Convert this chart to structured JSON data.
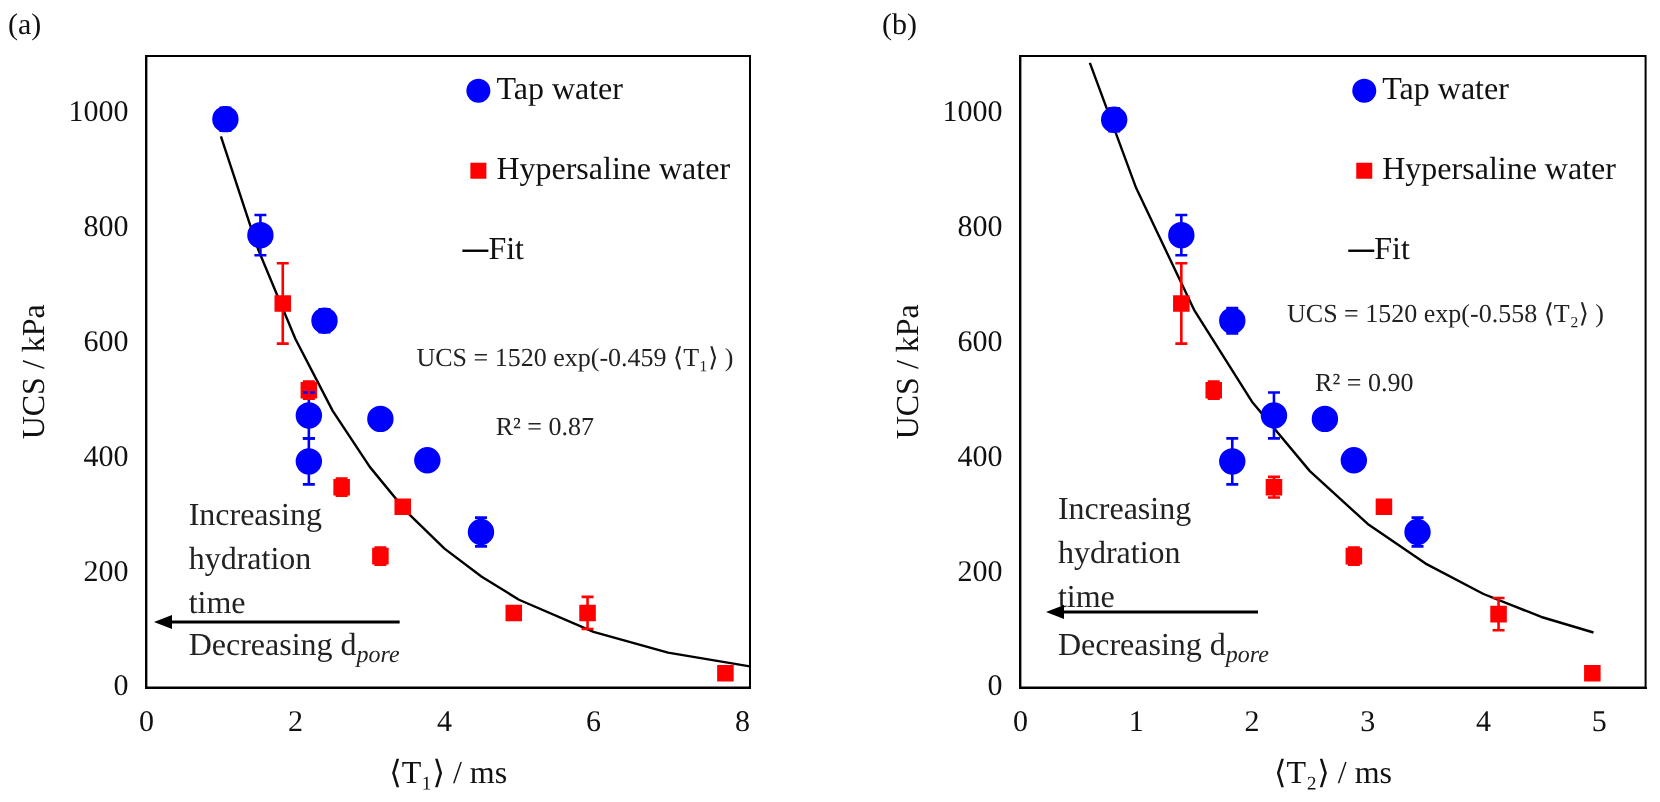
{
  "chart_data": [
    {
      "type": "scatter",
      "title": "(a)",
      "xlabel": "⟨T₁⟩ / ms",
      "ylabel": "UCS / kPa",
      "xlim": [
        0,
        8.1
      ],
      "xticks": [
        0,
        2,
        4,
        6,
        8
      ],
      "ylim": [
        0,
        1100
      ],
      "yticks": [
        0,
        200,
        400,
        600,
        800,
        1000
      ],
      "legend": "top right",
      "annotations": [
        "UCS = 1520 exp(-0.459 ⟨T₁⟩ )",
        "R² = 0.87",
        "Increasing hydration time",
        "Decreasing d$_{pore}$"
      ],
      "series": [
        {
          "name": "Tap water",
          "color": "#0000ff",
          "marker": "circle",
          "x": [
            1.06,
            1.53,
            2.39,
            2.18,
            2.18,
            3.14,
            3.77,
            4.49
          ],
          "values": [
            990,
            788,
            639,
            474,
            394,
            468,
            396,
            271
          ],
          "errors": [
            20,
            35,
            20,
            40,
            40,
            null,
            null,
            25
          ]
        },
        {
          "name": "Hypersaline water",
          "color": "#ff0000",
          "marker": "square",
          "x": [
            1.83,
            2.18,
            2.62,
            3.14,
            3.44,
            4.93,
            5.92,
            7.77
          ],
          "values": [
            669,
            518,
            349,
            229,
            315,
            130,
            130,
            25
          ],
          "errors": [
            70,
            15,
            15,
            15,
            null,
            null,
            28,
            null
          ]
        },
        {
          "name": "Fit",
          "type": "line",
          "color": "#000000",
          "marker": "none",
          "x": [
            1.0,
            1.5,
            2,
            2.5,
            3,
            3.5,
            4,
            4.5,
            5,
            6,
            7,
            8.1
          ],
          "values": [
            960,
            763,
            607,
            482,
            384,
            305,
            242,
            193,
            153,
            97,
            61,
            37
          ]
        }
      ]
    },
    {
      "type": "scatter",
      "title": "(b)",
      "xlabel": "⟨T₂⟩ / ms",
      "ylabel": "UCS / kPa",
      "xlim": [
        0,
        5.4
      ],
      "xticks": [
        0,
        1,
        2,
        3,
        4,
        5
      ],
      "ylim": [
        0,
        1100
      ],
      "yticks": [
        0,
        200,
        400,
        600,
        800,
        1000
      ],
      "legend": "top right",
      "annotations": [
        "UCS = 1520 exp(-0.558 ⟨T₂⟩ )",
        "R² = 0.90",
        "Increasing hydration time",
        "Decreasing d$_{pore}$"
      ],
      "series": [
        {
          "name": "Tap water",
          "color": "#0000ff",
          "marker": "circle",
          "x": [
            0.81,
            1.39,
            1.83,
            1.83,
            2.19,
            2.63,
            2.88,
            3.43
          ],
          "values": [
            989,
            788,
            639,
            394,
            474,
            468,
            396,
            271
          ],
          "errors": [
            20,
            35,
            22,
            40,
            40,
            null,
            null,
            25
          ]
        },
        {
          "name": "Hypersaline water",
          "color": "#ff0000",
          "marker": "square",
          "x": [
            1.39,
            1.67,
            2.19,
            2.88,
            3.14,
            4.13,
            4.94
          ],
          "values": [
            669,
            518,
            349,
            229,
            315,
            128,
            25
          ],
          "errors": [
            70,
            15,
            18,
            15,
            null,
            28,
            null
          ]
        },
        {
          "name": "Fit",
          "type": "line",
          "color": "#000000",
          "marker": "none",
          "x": [
            0.6,
            1,
            1.5,
            2,
            2.5,
            3,
            3.5,
            4,
            4.5,
            4.95
          ],
          "values": [
            1088,
            870,
            658,
            498,
            377,
            285,
            216,
            163,
            123,
            96
          ]
        }
      ]
    }
  ]
}
